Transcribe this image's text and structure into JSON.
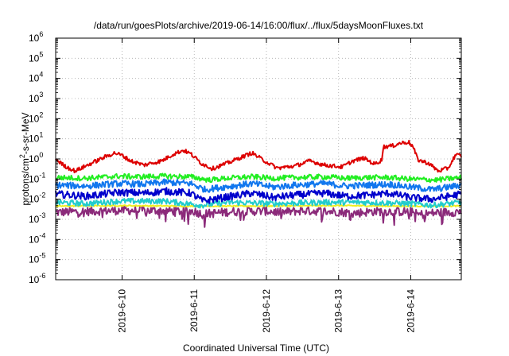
{
  "chart_data": {
    "type": "line",
    "title": "/data/run/goesPlots/archive/2019-06-14/16:00/flux/../flux/5daysMoonFluxes.txt",
    "xlabel": "Coordinated Universal Time (UTC)",
    "ylabel_parts": [
      "protons/cm",
      "2",
      "-s-sr-MeV"
    ],
    "yscale": "log",
    "ylim": [
      1e-06,
      1000000.0
    ],
    "y_ticks": [
      {
        "base": "10",
        "exp": "-6"
      },
      {
        "base": "10",
        "exp": "-5"
      },
      {
        "base": "10",
        "exp": "-4"
      },
      {
        "base": "10",
        "exp": "-3"
      },
      {
        "base": "10",
        "exp": "-2"
      },
      {
        "base": "10",
        "exp": "-1"
      },
      {
        "base": "10",
        "exp": "0"
      },
      {
        "base": "10",
        "exp": "1"
      },
      {
        "base": "10",
        "exp": "2"
      },
      {
        "base": "10",
        "exp": "3"
      },
      {
        "base": "10",
        "exp": "4"
      },
      {
        "base": "10",
        "exp": "5"
      },
      {
        "base": "10",
        "exp": "6"
      }
    ],
    "xlim_days": [
      9.08,
      14.7
    ],
    "x_ticks": [
      {
        "label": "2019-6-10",
        "day": 10
      },
      {
        "label": "2019-6-11",
        "day": 11
      },
      {
        "label": "2019-6-12",
        "day": 12
      },
      {
        "label": "2019-6-13",
        "day": 13
      },
      {
        "label": "2019-6-14",
        "day": 14
      }
    ],
    "grid": true,
    "legend": "none",
    "series": [
      {
        "color": "#dd0000",
        "noise": 0.1,
        "points": [
          [
            9.08,
            1.0
          ],
          [
            9.2,
            0.45
          ],
          [
            9.35,
            0.25
          ],
          [
            9.55,
            0.55
          ],
          [
            9.75,
            1.2
          ],
          [
            9.9,
            2.0
          ],
          [
            10.0,
            1.5
          ],
          [
            10.12,
            0.8
          ],
          [
            10.3,
            0.5
          ],
          [
            10.55,
            0.8
          ],
          [
            10.72,
            1.8
          ],
          [
            10.85,
            2.7
          ],
          [
            10.95,
            1.8
          ],
          [
            11.1,
            0.6
          ],
          [
            11.25,
            0.33
          ],
          [
            11.45,
            0.6
          ],
          [
            11.65,
            1.2
          ],
          [
            11.8,
            2.0
          ],
          [
            11.95,
            0.9
          ],
          [
            12.15,
            0.35
          ],
          [
            12.4,
            0.45
          ],
          [
            12.6,
            0.8
          ],
          [
            12.8,
            0.5
          ],
          [
            13.05,
            0.4
          ],
          [
            13.2,
            0.8
          ],
          [
            13.35,
            1.1
          ],
          [
            13.5,
            0.55
          ],
          [
            13.6,
            0.9
          ],
          [
            13.62,
            4.0
          ],
          [
            13.75,
            4.5
          ],
          [
            13.85,
            6.0
          ],
          [
            13.97,
            7.0
          ],
          [
            14.03,
            4.0
          ],
          [
            14.1,
            0.9
          ],
          [
            14.25,
            0.6
          ],
          [
            14.38,
            0.25
          ],
          [
            14.52,
            0.35
          ],
          [
            14.62,
            1.6
          ],
          [
            14.7,
            1.4
          ]
        ]
      },
      {
        "color": "#22ee22",
        "noise": 0.13,
        "points": [
          [
            9.08,
            0.12
          ],
          [
            9.5,
            0.11
          ],
          [
            9.95,
            0.14
          ],
          [
            10.2,
            0.13
          ],
          [
            10.6,
            0.14
          ],
          [
            10.95,
            0.13
          ],
          [
            11.2,
            0.09
          ],
          [
            11.45,
            0.11
          ],
          [
            11.8,
            0.13
          ],
          [
            12.1,
            0.11
          ],
          [
            12.4,
            0.12
          ],
          [
            12.8,
            0.13
          ],
          [
            13.1,
            0.11
          ],
          [
            13.4,
            0.12
          ],
          [
            13.7,
            0.12
          ],
          [
            14.0,
            0.1
          ],
          [
            14.35,
            0.09
          ],
          [
            14.7,
            0.12
          ]
        ]
      },
      {
        "color": "#1177ee",
        "noise": 0.16,
        "points": [
          [
            9.08,
            0.05
          ],
          [
            9.5,
            0.045
          ],
          [
            9.95,
            0.06
          ],
          [
            10.3,
            0.055
          ],
          [
            10.6,
            0.07
          ],
          [
            10.95,
            0.06
          ],
          [
            11.15,
            0.03
          ],
          [
            11.4,
            0.04
          ],
          [
            11.8,
            0.06
          ],
          [
            12.1,
            0.04
          ],
          [
            12.4,
            0.05
          ],
          [
            12.8,
            0.06
          ],
          [
            13.1,
            0.045
          ],
          [
            13.4,
            0.05
          ],
          [
            13.7,
            0.055
          ],
          [
            14.0,
            0.04
          ],
          [
            14.3,
            0.03
          ],
          [
            14.7,
            0.05
          ]
        ]
      },
      {
        "color": "#0000cc",
        "noise": 0.18,
        "points": [
          [
            9.08,
            0.018
          ],
          [
            9.5,
            0.014
          ],
          [
            9.95,
            0.022
          ],
          [
            10.3,
            0.02
          ],
          [
            10.6,
            0.025
          ],
          [
            10.95,
            0.02
          ],
          [
            11.12,
            0.008
          ],
          [
            11.4,
            0.012
          ],
          [
            11.8,
            0.02
          ],
          [
            12.1,
            0.012
          ],
          [
            12.4,
            0.016
          ],
          [
            12.8,
            0.02
          ],
          [
            13.1,
            0.014
          ],
          [
            13.4,
            0.016
          ],
          [
            13.7,
            0.02
          ],
          [
            14.0,
            0.012
          ],
          [
            14.3,
            0.01
          ],
          [
            14.7,
            0.018
          ]
        ]
      },
      {
        "color": "#22cccc",
        "noise": 0.14,
        "points": [
          [
            9.08,
            0.007
          ],
          [
            9.5,
            0.006
          ],
          [
            9.95,
            0.008
          ],
          [
            10.6,
            0.008
          ],
          [
            11.1,
            0.005
          ],
          [
            11.5,
            0.007
          ],
          [
            12.1,
            0.006
          ],
          [
            12.8,
            0.007
          ],
          [
            13.4,
            0.007
          ],
          [
            14.0,
            0.006
          ],
          [
            14.3,
            0.005
          ],
          [
            14.7,
            0.007
          ]
        ]
      },
      {
        "color": "#eeee22",
        "noise": 0.03,
        "points": [
          [
            9.08,
            0.0045
          ],
          [
            10.0,
            0.0048
          ],
          [
            11.0,
            0.0045
          ],
          [
            12.0,
            0.0046
          ],
          [
            13.0,
            0.0048
          ],
          [
            14.0,
            0.0045
          ],
          [
            14.7,
            0.0046
          ]
        ]
      },
      {
        "color": "#8b2a7a",
        "noise": 0.22,
        "spikes": true,
        "points": [
          [
            9.08,
            0.0022
          ],
          [
            9.5,
            0.0025
          ],
          [
            10.0,
            0.0028
          ],
          [
            10.5,
            0.0027
          ],
          [
            11.0,
            0.0025
          ],
          [
            11.12,
            0.0018
          ],
          [
            11.5,
            0.0024
          ],
          [
            12.0,
            0.0026
          ],
          [
            12.2,
            0.0022
          ],
          [
            12.5,
            0.0027
          ],
          [
            13.0,
            0.0024
          ],
          [
            13.2,
            0.002
          ],
          [
            13.5,
            0.0025
          ],
          [
            14.0,
            0.0024
          ],
          [
            14.1,
            0.0017
          ],
          [
            14.4,
            0.0022
          ],
          [
            14.7,
            0.0024
          ]
        ]
      }
    ]
  }
}
